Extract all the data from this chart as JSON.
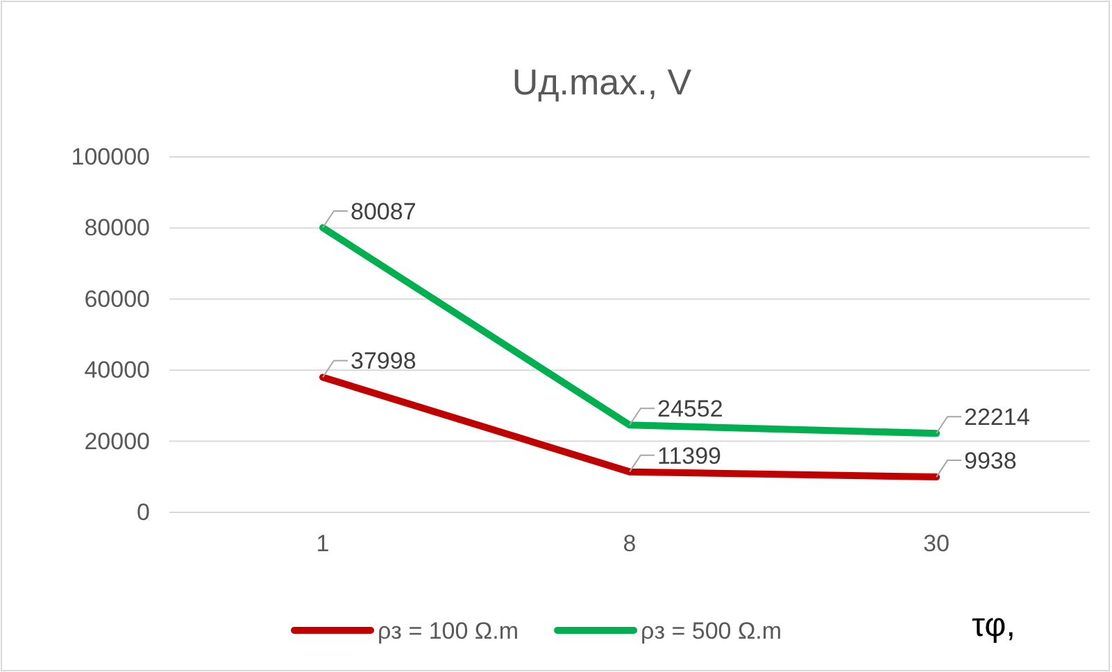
{
  "chart_data": {
    "type": "line",
    "title": "Uд.max., V",
    "xlabel": "τφ,",
    "categories": [
      "1",
      "8",
      "30"
    ],
    "series": [
      {
        "name": "ρз = 100 Ω.m",
        "color": "#c00000",
        "values": [
          37998,
          11399,
          9938
        ]
      },
      {
        "name": "ρз = 500 Ω.m",
        "color": "#00b050",
        "values": [
          80087,
          24552,
          22214
        ]
      }
    ],
    "ylim": [
      0,
      100000
    ],
    "yticks": [
      0,
      20000,
      40000,
      60000,
      80000,
      100000
    ],
    "grid": "y",
    "legend": "bottom",
    "data_labels": true,
    "line_style": "solid",
    "marker": "none"
  }
}
